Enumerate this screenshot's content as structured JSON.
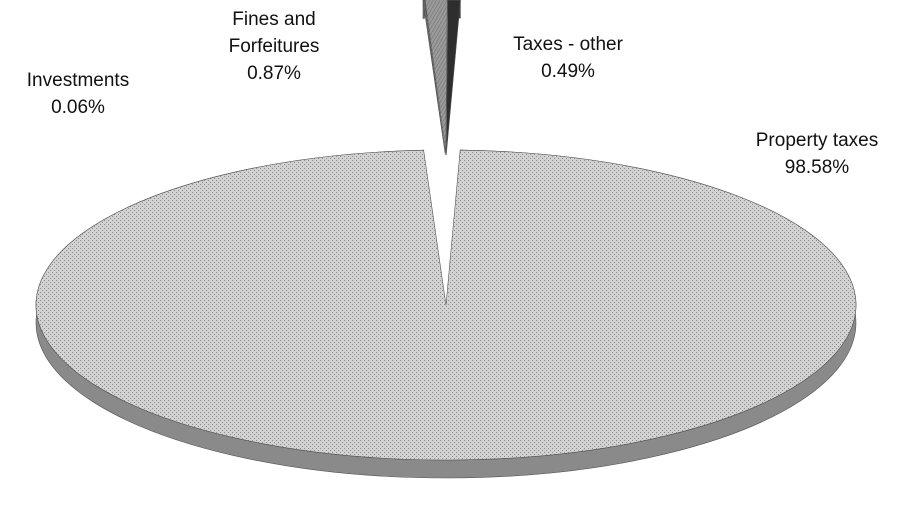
{
  "chart_data": {
    "type": "pie",
    "style": "3d-exploded",
    "categories": [
      "Property taxes",
      "Taxes - other",
      "Fines and Forfeitures",
      "Investments"
    ],
    "values": [
      98.58,
      0.49,
      0.87,
      0.06
    ],
    "value_labels": [
      "98.58%",
      "0.49%",
      "0.87%",
      "0.06%"
    ],
    "label_lines": [
      [
        "Property taxes",
        "98.58%"
      ],
      [
        "Taxes - other",
        "0.49%"
      ],
      [
        "Fines and",
        "Forfeitures",
        "0.87%"
      ],
      [
        "Investments",
        "0.06%"
      ]
    ],
    "legend": "none",
    "colors": {
      "property_taxes": "#c9c9c9",
      "property_taxes_side": "#8a8a8a",
      "taxes_other": "#2e2e2e",
      "fines": "#9a9a9a",
      "investments": "#6a6a6a",
      "outline": "#555555"
    }
  }
}
